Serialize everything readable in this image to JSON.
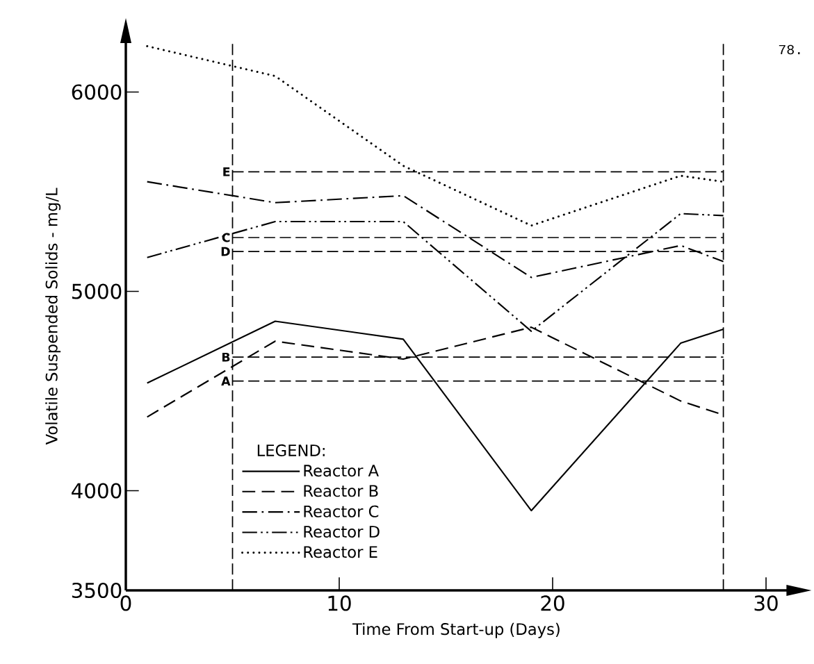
{
  "chart_data": {
    "type": "line",
    "xlabel": "Time From Start-up (Days)",
    "ylabel": "Volatile Suspended Solids - mg/L",
    "legend_title": "LEGEND:",
    "legend": "bottom left",
    "x": [
      1,
      7,
      13,
      19,
      26,
      28
    ],
    "series": [
      {
        "name": "Reactor A",
        "color": "#000000",
        "line_style": "solid",
        "values": [
          4540,
          4850,
          4760,
          3900,
          4740,
          4810
        ]
      },
      {
        "name": "Reactor B",
        "color": "#000000",
        "line_style": "dashed",
        "values": [
          4370,
          4750,
          4660,
          4820,
          4450,
          4380
        ]
      },
      {
        "name": "Reactor C",
        "color": "#000000",
        "line_style": "dashdot",
        "values": [
          5550,
          5445,
          5480,
          5070,
          5230,
          5150
        ]
      },
      {
        "name": "Reactor D",
        "color": "#000000",
        "line_style": "dashdotdot",
        "values": [
          5170,
          5350,
          5350,
          4800,
          5390,
          5380
        ]
      },
      {
        "name": "Reactor E",
        "color": "#000000",
        "line_style": "dotted",
        "values": [
          6230,
          6080,
          5630,
          5330,
          5580,
          5550
        ]
      }
    ],
    "xlim": [
      0,
      31
    ],
    "ylim": [
      3500,
      6250
    ],
    "xticks": [
      0,
      10,
      20,
      30
    ],
    "yticks": [
      3500,
      4000,
      5000,
      6000
    ],
    "ref_lines": [
      {
        "axis": "x",
        "value": 5,
        "label": null
      },
      {
        "axis": "x",
        "value": 28,
        "label": null
      },
      {
        "axis": "y",
        "value": 5600,
        "label": "E"
      },
      {
        "axis": "y",
        "value": 5270,
        "label": "C"
      },
      {
        "axis": "y",
        "value": 5200,
        "label": "D"
      },
      {
        "axis": "y",
        "value": 4670,
        "label": "B"
      },
      {
        "axis": "y",
        "value": 4550,
        "label": "A"
      }
    ],
    "annotations": [
      "78."
    ]
  }
}
